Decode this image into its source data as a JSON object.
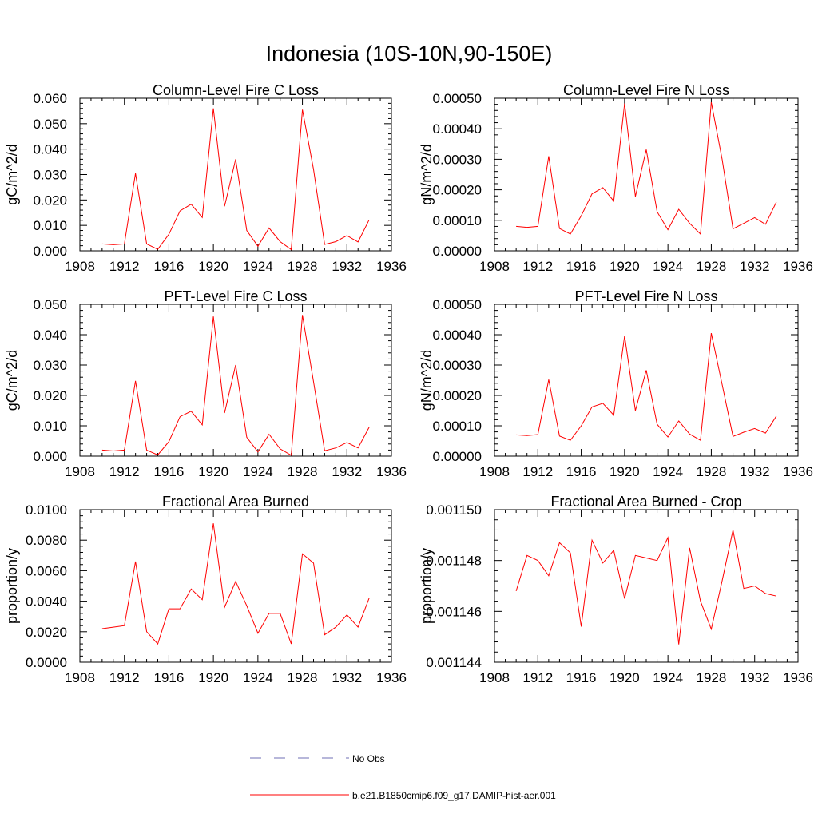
{
  "figure": {
    "title": "Indonesia (10S-10N,90-150E)"
  },
  "legend": [
    {
      "label": "No Obs",
      "color": "#6f6fb5",
      "style": "dashed"
    },
    {
      "label": "b.e21.B1850cmip6.f09_g17.DAMIP-hist-aer.001",
      "color": "#ff0000",
      "style": "solid"
    }
  ],
  "chart_data": [
    {
      "type": "line",
      "title": "Column-Level Fire C Loss",
      "ylabel": "gC/m^2/d",
      "xlim": [
        1908,
        1936
      ],
      "xticks": [
        "1908",
        "1912",
        "1916",
        "1920",
        "1924",
        "1928",
        "1932",
        "1936"
      ],
      "ylim": [
        0,
        0.06
      ],
      "yticks": [
        "0.000",
        "0.010",
        "0.020",
        "0.030",
        "0.040",
        "0.050",
        "0.060"
      ],
      "x": [
        1910,
        1911,
        1912,
        1913,
        1914,
        1915,
        1916,
        1917,
        1918,
        1919,
        1920,
        1921,
        1922,
        1923,
        1924,
        1925,
        1926,
        1927,
        1928,
        1929,
        1930,
        1931,
        1932,
        1933,
        1934
      ],
      "series": [
        {
          "values": [
            0.0027,
            0.0024,
            0.0027,
            0.0305,
            0.0027,
            0.0006,
            0.0065,
            0.0157,
            0.0183,
            0.0131,
            0.056,
            0.0175,
            0.036,
            0.008,
            0.0018,
            0.009,
            0.0036,
            0.0005,
            0.0555,
            0.032,
            0.0025,
            0.0036,
            0.006,
            0.0035,
            0.0122
          ],
          "color": "#ff0000"
        }
      ]
    },
    {
      "type": "line",
      "title": "Column-Level Fire N Loss",
      "ylabel": "gN/m^2/d",
      "xlim": [
        1908,
        1936
      ],
      "xticks": [
        "1908",
        "1912",
        "1916",
        "1920",
        "1924",
        "1928",
        "1932",
        "1936"
      ],
      "ylim": [
        0,
        0.0005
      ],
      "yticks": [
        "0.00000",
        "0.00010",
        "0.00020",
        "0.00030",
        "0.00040",
        "0.00050"
      ],
      "x": [
        1910,
        1911,
        1912,
        1913,
        1914,
        1915,
        1916,
        1917,
        1918,
        1919,
        1920,
        1921,
        1922,
        1923,
        1924,
        1925,
        1926,
        1927,
        1928,
        1929,
        1930,
        1931,
        1932,
        1933,
        1934
      ],
      "series": [
        {
          "values": [
            8e-05,
            7.7e-05,
            8e-05,
            0.00031,
            7.3e-05,
            5.5e-05,
            0.000115,
            0.000187,
            0.000207,
            0.000163,
            0.000483,
            0.000178,
            0.000332,
            0.000128,
            6.9e-05,
            0.000136,
            9e-05,
            5.5e-05,
            0.000487,
            0.0003,
            7.2e-05,
            9e-05,
            0.000109,
            8.7e-05,
            0.00016
          ],
          "color": "#ff0000"
        }
      ]
    },
    {
      "type": "line",
      "title": "PFT-Level Fire C Loss",
      "ylabel": "gC/m^2/d",
      "xlim": [
        1908,
        1936
      ],
      "xticks": [
        "1908",
        "1912",
        "1916",
        "1920",
        "1924",
        "1928",
        "1932",
        "1936"
      ],
      "ylim": [
        0,
        0.05
      ],
      "yticks": [
        "0.000",
        "0.010",
        "0.020",
        "0.030",
        "0.040",
        "0.050"
      ],
      "x": [
        1910,
        1911,
        1912,
        1913,
        1914,
        1915,
        1916,
        1917,
        1918,
        1919,
        1920,
        1921,
        1922,
        1923,
        1924,
        1925,
        1926,
        1927,
        1928,
        1929,
        1930,
        1931,
        1932,
        1933,
        1934
      ],
      "series": [
        {
          "values": [
            0.002,
            0.0017,
            0.002,
            0.0248,
            0.002,
            0.0004,
            0.0048,
            0.013,
            0.0148,
            0.0103,
            0.046,
            0.0142,
            0.03,
            0.0062,
            0.0014,
            0.0072,
            0.0024,
            0.0003,
            0.0465,
            0.0245,
            0.0018,
            0.0027,
            0.0045,
            0.0027,
            0.0095
          ],
          "color": "#ff0000"
        }
      ]
    },
    {
      "type": "line",
      "title": "PFT-Level Fire N Loss",
      "ylabel": "gN/m^2/d",
      "xlim": [
        1908,
        1936
      ],
      "xticks": [
        "1908",
        "1912",
        "1916",
        "1920",
        "1924",
        "1928",
        "1932",
        "1936"
      ],
      "ylim": [
        0,
        0.0005
      ],
      "yticks": [
        "0.00000",
        "0.00010",
        "0.00020",
        "0.00030",
        "0.00040",
        "0.00050"
      ],
      "x": [
        1910,
        1911,
        1912,
        1913,
        1914,
        1915,
        1916,
        1917,
        1918,
        1919,
        1920,
        1921,
        1922,
        1923,
        1924,
        1925,
        1926,
        1927,
        1928,
        1929,
        1930,
        1931,
        1932,
        1933,
        1934
      ],
      "series": [
        {
          "values": [
            7e-05,
            6.8e-05,
            7.1e-05,
            0.000252,
            6.6e-05,
            5.2e-05,
            0.0001,
            0.000162,
            0.000174,
            0.000135,
            0.000396,
            0.00015,
            0.000283,
            0.000105,
            6.3e-05,
            0.000116,
            7.3e-05,
            5.2e-05,
            0.000405,
            0.000236,
            6.5e-05,
            7.9e-05,
            9.1e-05,
            7.6e-05,
            0.000132
          ],
          "color": "#ff0000"
        }
      ]
    },
    {
      "type": "line",
      "title": "Fractional Area Burned",
      "ylabel": "proportion/y",
      "xlim": [
        1908,
        1936
      ],
      "xticks": [
        "1908",
        "1912",
        "1916",
        "1920",
        "1924",
        "1928",
        "1932",
        "1936"
      ],
      "ylim": [
        0,
        0.01
      ],
      "yticks": [
        "0.0000",
        "0.0020",
        "0.0040",
        "0.0060",
        "0.0080",
        "0.0100"
      ],
      "x": [
        1910,
        1911,
        1912,
        1913,
        1914,
        1915,
        1916,
        1917,
        1918,
        1919,
        1920,
        1921,
        1922,
        1923,
        1924,
        1925,
        1926,
        1927,
        1928,
        1929,
        1930,
        1931,
        1932,
        1933,
        1934
      ],
      "series": [
        {
          "values": [
            0.0022,
            0.0023,
            0.0024,
            0.0066,
            0.002,
            0.0012,
            0.0035,
            0.0035,
            0.0048,
            0.0041,
            0.0091,
            0.0036,
            0.0053,
            0.0037,
            0.0019,
            0.0032,
            0.0032,
            0.0012,
            0.0071,
            0.0065,
            0.0018,
            0.0023,
            0.0031,
            0.0023,
            0.0042
          ],
          "color": "#ff0000"
        }
      ]
    },
    {
      "type": "line",
      "title": "Fractional Area Burned - Crop",
      "ylabel": "proportion/y",
      "xlim": [
        1908,
        1936
      ],
      "xticks": [
        "1908",
        "1912",
        "1916",
        "1920",
        "1924",
        "1928",
        "1932",
        "1936"
      ],
      "ylim": [
        0.001144,
        0.00115
      ],
      "yticks": [
        "0.001144",
        "0.001146",
        "0.001148",
        "0.001150"
      ],
      "x": [
        1910,
        1911,
        1912,
        1913,
        1914,
        1915,
        1916,
        1917,
        1918,
        1919,
        1920,
        1921,
        1922,
        1923,
        1924,
        1925,
        1926,
        1927,
        1928,
        1929,
        1930,
        1931,
        1932,
        1933,
        1934
      ],
      "series": [
        {
          "values": [
            0.0011468,
            0.0011482,
            0.001148,
            0.0011474,
            0.0011487,
            0.0011483,
            0.0011454,
            0.0011488,
            0.0011479,
            0.0011484,
            0.0011465,
            0.0011482,
            0.0011481,
            0.001148,
            0.0011489,
            0.0011447,
            0.0011485,
            0.0011464,
            0.0011453,
            0.0011472,
            0.0011492,
            0.0011469,
            0.001147,
            0.0011467,
            0.0011466
          ],
          "color": "#ff0000"
        }
      ]
    }
  ]
}
